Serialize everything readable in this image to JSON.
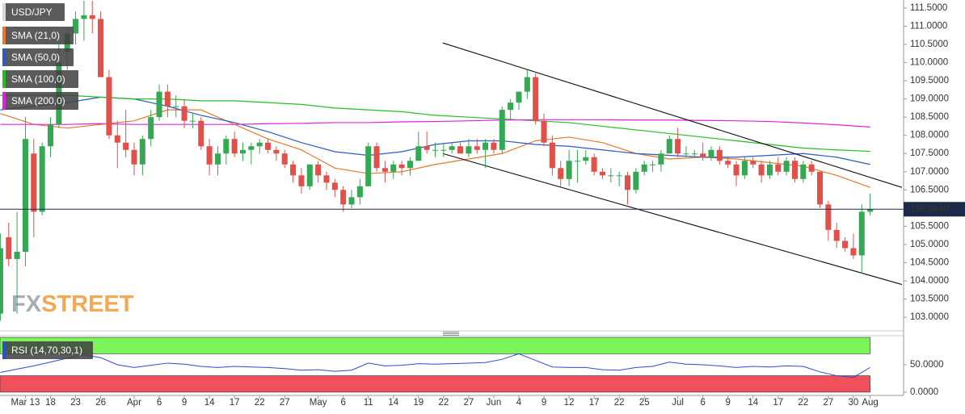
{
  "chart_data": {
    "type": "candlestick",
    "name": "USD/JPY",
    "up_color": "#34a853",
    "down_color": "#e0514a",
    "x": [
      0,
      1,
      2,
      3,
      4,
      5,
      6,
      7,
      8,
      9,
      10,
      11,
      12,
      13,
      14,
      15,
      16,
      17,
      18,
      19,
      20,
      21,
      22,
      23,
      24,
      25,
      26,
      27,
      28,
      29,
      30,
      31,
      32,
      33,
      34,
      35,
      36,
      37,
      38,
      39,
      40,
      41,
      42,
      43,
      44,
      45,
      46,
      47,
      48,
      49,
      50,
      51,
      52,
      53,
      54,
      55,
      56,
      57,
      58,
      59,
      60,
      61,
      62,
      63,
      64,
      65,
      66,
      67,
      68,
      69,
      70,
      71,
      72,
      73,
      74,
      75,
      76,
      77,
      78,
      79,
      80,
      81,
      82,
      83,
      84,
      85,
      86,
      87,
      88,
      89,
      90,
      91,
      92,
      93,
      94,
      95,
      96,
      97,
      98,
      99,
      100,
      101,
      102,
      103,
      104
    ],
    "open": [
      103.1,
      105.2,
      104.6,
      104.8,
      107.5,
      105.9,
      107.7,
      108.3,
      110.3,
      110.8,
      111.2,
      111.3,
      111.2,
      109.6,
      108.0,
      107.8,
      107.6,
      107.2,
      107.9,
      108.5,
      109.2,
      108.8,
      108.8,
      108.4,
      108.4,
      107.7,
      107.2,
      107.5,
      107.9,
      107.5,
      107.6,
      107.7,
      107.8,
      107.6,
      107.5,
      107.2,
      106.9,
      106.6,
      107.2,
      106.9,
      106.7,
      106.5,
      106.1,
      106.3,
      106.6,
      107.7,
      107.1,
      107.0,
      107.2,
      107.1,
      107.3,
      107.7,
      107.6,
      107.6,
      107.6,
      107.7,
      107.5,
      107.7,
      107.6,
      107.8,
      107.6,
      108.7,
      108.9,
      109.2,
      109.6,
      108.4,
      107.8,
      107.1,
      106.8,
      107.3,
      107.3,
      107.4,
      107.0,
      106.9,
      106.9,
      106.9,
      106.5,
      107.0,
      107.2,
      107.2,
      107.5,
      107.9,
      107.5,
      107.5,
      107.5,
      107.4,
      107.6,
      107.3,
      107.2,
      106.9,
      107.3,
      107.2,
      106.9,
      107.2,
      107.0,
      107.3,
      106.8,
      107.2,
      107.0,
      106.1,
      105.4,
      105.1,
      104.9,
      104.7,
      105.9
    ],
    "high": [
      105.3,
      105.6,
      105.9,
      108.5,
      107.9,
      107.8,
      108.5,
      110.5,
      110.9,
      111.4,
      111.7,
      111.7,
      111.4,
      109.8,
      108.4,
      108.7,
      107.8,
      108.0,
      108.7,
      109.4,
      109.4,
      109.1,
      109.0,
      108.6,
      108.5,
      107.9,
      107.7,
      108.0,
      108.1,
      107.8,
      107.8,
      107.9,
      107.9,
      107.7,
      107.6,
      107.3,
      107.1,
      107.2,
      107.3,
      107.0,
      106.8,
      106.6,
      106.5,
      106.8,
      107.8,
      107.8,
      107.3,
      107.3,
      107.3,
      107.4,
      108.1,
      108.1,
      107.8,
      107.8,
      107.8,
      107.8,
      107.9,
      107.9,
      107.9,
      107.9,
      108.8,
      109.0,
      109.2,
      109.8,
      109.7,
      108.6,
      108.0,
      107.3,
      107.6,
      107.6,
      107.6,
      107.5,
      107.1,
      107.1,
      107.0,
      107.0,
      107.1,
      107.3,
      107.3,
      107.6,
      108.0,
      108.2,
      107.7,
      107.6,
      107.8,
      107.7,
      107.7,
      107.4,
      107.3,
      107.4,
      107.4,
      107.3,
      107.3,
      107.4,
      107.4,
      107.4,
      107.3,
      107.3,
      107.0,
      106.2,
      105.6,
      105.2,
      105.3,
      106.1,
      106.4
    ],
    "low": [
      102.9,
      104.4,
      103.1,
      104.4,
      105.2,
      105.8,
      107.4,
      108.2,
      109.8,
      110.5,
      110.6,
      110.8,
      109.6,
      107.9,
      107.1,
      107.4,
      106.9,
      106.9,
      107.7,
      108.4,
      108.5,
      108.5,
      108.2,
      108.2,
      107.6,
      106.9,
      106.9,
      107.2,
      107.4,
      107.3,
      107.2,
      107.5,
      107.5,
      107.3,
      107.1,
      106.7,
      106.4,
      106.5,
      106.7,
      106.5,
      106.3,
      105.9,
      106.0,
      106.1,
      106.6,
      107.0,
      106.7,
      106.8,
      106.9,
      106.9,
      107.3,
      107.5,
      107.4,
      107.4,
      107.5,
      107.5,
      107.4,
      107.5,
      107.1,
      107.5,
      107.5,
      108.4,
      108.7,
      109.0,
      108.3,
      107.7,
      106.9,
      106.6,
      106.6,
      106.7,
      107.2,
      106.9,
      106.8,
      106.7,
      106.6,
      106.1,
      106.4,
      106.9,
      107.0,
      107.0,
      107.5,
      107.4,
      107.4,
      107.4,
      107.3,
      107.3,
      107.2,
      107.1,
      106.6,
      106.8,
      107.1,
      106.7,
      106.8,
      106.9,
      106.9,
      106.7,
      106.7,
      106.9,
      106.0,
      105.1,
      104.9,
      104.8,
      104.6,
      104.2,
      105.8
    ],
    "close": [
      104.9,
      104.6,
      104.8,
      107.9,
      105.9,
      107.7,
      108.3,
      110.0,
      110.8,
      111.2,
      111.3,
      111.2,
      109.6,
      108.0,
      107.8,
      107.6,
      107.2,
      107.9,
      108.5,
      109.2,
      108.8,
      108.8,
      108.4,
      108.4,
      107.7,
      107.2,
      107.5,
      107.9,
      107.5,
      107.6,
      107.7,
      107.8,
      107.6,
      107.5,
      107.2,
      106.9,
      106.6,
      107.2,
      106.9,
      106.7,
      106.5,
      106.1,
      106.3,
      106.6,
      107.7,
      107.1,
      107.0,
      107.2,
      107.1,
      107.3,
      107.7,
      107.6,
      107.6,
      107.6,
      107.7,
      107.5,
      107.7,
      107.6,
      107.8,
      107.6,
      108.7,
      108.9,
      109.2,
      109.6,
      108.4,
      107.8,
      107.1,
      106.8,
      107.3,
      107.3,
      107.4,
      107.0,
      106.9,
      106.9,
      106.9,
      106.5,
      107.0,
      107.2,
      107.2,
      107.5,
      107.9,
      107.5,
      107.5,
      107.5,
      107.4,
      107.6,
      107.3,
      107.2,
      106.9,
      107.3,
      107.2,
      106.9,
      107.2,
      107.0,
      107.3,
      106.8,
      107.2,
      107.0,
      106.1,
      105.4,
      105.1,
      104.9,
      104.7,
      105.9,
      105.969
    ],
    "series": [
      {
        "name": "SMA (21,0)",
        "color": "#e8782a",
        "x": [
          0,
          4,
          8,
          12,
          16,
          20,
          24,
          28,
          32,
          36,
          40,
          44,
          48,
          52,
          56,
          60,
          64,
          68,
          72,
          76,
          80,
          84,
          88,
          92,
          96,
          100,
          104
        ],
        "values": [
          108.6,
          108.3,
          108.2,
          108.3,
          108.4,
          108.7,
          108.7,
          108.3,
          107.9,
          107.6,
          107.1,
          106.95,
          107.0,
          107.2,
          107.35,
          107.5,
          107.85,
          107.95,
          107.8,
          107.5,
          107.35,
          107.4,
          107.35,
          107.25,
          107.15,
          106.9,
          106.57
        ]
      },
      {
        "name": "SMA (50,0)",
        "color": "#2a5cc4",
        "x": [
          0,
          4,
          8,
          12,
          16,
          20,
          24,
          28,
          32,
          36,
          40,
          44,
          48,
          52,
          56,
          60,
          64,
          68,
          72,
          76,
          80,
          84,
          88,
          92,
          96,
          100,
          104
        ],
        "values": [
          108.7,
          108.8,
          108.9,
          109.05,
          109.0,
          108.8,
          108.55,
          108.35,
          108.1,
          107.8,
          107.55,
          107.45,
          107.55,
          107.75,
          107.85,
          107.85,
          107.75,
          107.7,
          107.6,
          107.5,
          107.45,
          107.4,
          107.4,
          107.45,
          107.5,
          107.4,
          107.2
        ]
      },
      {
        "name": "SMA (100,0)",
        "color": "#22c022",
        "x": [
          0,
          4,
          8,
          12,
          16,
          20,
          24,
          28,
          32,
          36,
          40,
          44,
          48,
          52,
          56,
          60,
          64,
          68,
          72,
          76,
          80,
          84,
          88,
          92,
          96,
          100,
          104
        ],
        "values": [
          109.1,
          109.1,
          109.1,
          109.05,
          109.0,
          109.0,
          108.95,
          108.95,
          108.9,
          108.85,
          108.75,
          108.7,
          108.65,
          108.55,
          108.5,
          108.45,
          108.4,
          108.35,
          108.25,
          108.15,
          108.05,
          107.95,
          107.85,
          107.75,
          107.65,
          107.6,
          107.56
        ]
      },
      {
        "name": "SMA (200,0)",
        "color": "#e020e0",
        "x": [
          0,
          4,
          8,
          12,
          16,
          20,
          24,
          28,
          32,
          36,
          40,
          44,
          48,
          52,
          56,
          60,
          64,
          68,
          72,
          76,
          80,
          84,
          88,
          92,
          96,
          100,
          104
        ],
        "values": [
          108.3,
          108.3,
          108.3,
          108.32,
          108.3,
          108.3,
          108.3,
          108.3,
          108.32,
          108.33,
          108.35,
          108.35,
          108.37,
          108.38,
          108.4,
          108.42,
          108.43,
          108.43,
          108.43,
          108.42,
          108.42,
          108.41,
          108.4,
          108.38,
          108.34,
          108.29,
          108.23
        ]
      }
    ],
    "trendline_color": "#111111",
    "trendlines": [
      {
        "x": [
          52.9,
          107.8
        ],
        "y": [
          110.54,
          106.57
        ]
      },
      {
        "x": [
          52.9,
          107.8
        ],
        "y": [
          107.5,
          103.9
        ]
      }
    ],
    "last_price": {
      "value": 105.969,
      "label": "105.9690"
    },
    "last_price_color": "#1e2a4a",
    "xlim": [
      -0.04,
      108
    ],
    "ylim": [
      102.67,
      111.72
    ],
    "xticks": [
      {
        "value": 3,
        "label": "Mar 13"
      },
      {
        "value": 6,
        "label": "18"
      },
      {
        "value": 9,
        "label": "23"
      },
      {
        "value": 12,
        "label": "26"
      },
      {
        "value": 16,
        "label": "Apr"
      },
      {
        "value": 19,
        "label": "6"
      },
      {
        "value": 22,
        "label": "9"
      },
      {
        "value": 25,
        "label": "14"
      },
      {
        "value": 28,
        "label": "17"
      },
      {
        "value": 31,
        "label": "22"
      },
      {
        "value": 34,
        "label": "27"
      },
      {
        "value": 38,
        "label": "May"
      },
      {
        "value": 41,
        "label": "6"
      },
      {
        "value": 44,
        "label": "11"
      },
      {
        "value": 47,
        "label": "14"
      },
      {
        "value": 50,
        "label": "19"
      },
      {
        "value": 53,
        "label": "22"
      },
      {
        "value": 56,
        "label": "27"
      },
      {
        "value": 59,
        "label": "Jun"
      },
      {
        "value": 62,
        "label": "4"
      },
      {
        "value": 65,
        "label": "9"
      },
      {
        "value": 68,
        "label": "12"
      },
      {
        "value": 71,
        "label": "17"
      },
      {
        "value": 74,
        "label": "22"
      },
      {
        "value": 77,
        "label": "25"
      },
      {
        "value": 81,
        "label": "Jul"
      },
      {
        "value": 84,
        "label": "6"
      },
      {
        "value": 87,
        "label": "9"
      },
      {
        "value": 90,
        "label": "14"
      },
      {
        "value": 93,
        "label": "17"
      },
      {
        "value": 96,
        "label": "22"
      },
      {
        "value": 99,
        "label": "27"
      },
      {
        "value": 102,
        "label": "30"
      },
      {
        "value": 104,
        "label": "Aug"
      }
    ],
    "yticks": [
      {
        "value": 103.0,
        "label": "103.0000"
      },
      {
        "value": 103.5,
        "label": "103.5000"
      },
      {
        "value": 104.0,
        "label": "104.0000"
      },
      {
        "value": 104.5,
        "label": "104.5000"
      },
      {
        "value": 105.0,
        "label": "105.0000"
      },
      {
        "value": 105.5,
        "label": "105.5000"
      },
      {
        "value": 106.0,
        "label": "106.0000"
      },
      {
        "value": 106.5,
        "label": "106.5000"
      },
      {
        "value": 107.0,
        "label": "107.0000"
      },
      {
        "value": 107.5,
        "label": "107.5000"
      },
      {
        "value": 108.0,
        "label": "108.0000"
      },
      {
        "value": 108.5,
        "label": "108.5000"
      },
      {
        "value": 109.0,
        "label": "109.0000"
      },
      {
        "value": 109.5,
        "label": "109.5000"
      },
      {
        "value": 110.0,
        "label": "110.0000"
      },
      {
        "value": 110.5,
        "label": "110.5000"
      },
      {
        "value": 111.0,
        "label": "111.0000"
      },
      {
        "value": 111.5,
        "label": "111.5000"
      }
    ],
    "watermark": [
      "FX",
      "STREET"
    ],
    "rsi": {
      "name": "RSI (14,70,30,1)",
      "color": "#2a4bd7",
      "x": [
        0,
        2,
        4,
        6,
        8,
        10,
        12,
        14,
        16,
        18,
        20,
        22,
        24,
        26,
        28,
        30,
        32,
        34,
        36,
        38,
        40,
        42,
        44,
        46,
        48,
        50,
        52,
        54,
        56,
        58,
        60,
        62,
        64,
        66,
        68,
        70,
        72,
        74,
        76,
        78,
        80,
        82,
        84,
        86,
        88,
        90,
        92,
        94,
        96,
        98,
        100,
        102,
        104
      ],
      "values": [
        36,
        42,
        48,
        55,
        62,
        68,
        63,
        50,
        45,
        49,
        53,
        51,
        47,
        45,
        47,
        46,
        45,
        43,
        40,
        41,
        38,
        40,
        53,
        48,
        49,
        52,
        51,
        52,
        53,
        54,
        60,
        70,
        58,
        46,
        45,
        45,
        41,
        40,
        45,
        47,
        55,
        51,
        50,
        48,
        45,
        47,
        46,
        48,
        47,
        37,
        30,
        27,
        45
      ],
      "ylim": [
        -6,
        103
      ],
      "yticks": [
        {
          "value": 0,
          "label": "0.0000"
        },
        {
          "value": 50,
          "label": "50.0000"
        }
      ],
      "overbought": [
        70,
        100
      ],
      "overbought_color": "#7cf55a",
      "oversold": [
        0,
        30
      ],
      "oversold_color": "#f0505a"
    }
  }
}
